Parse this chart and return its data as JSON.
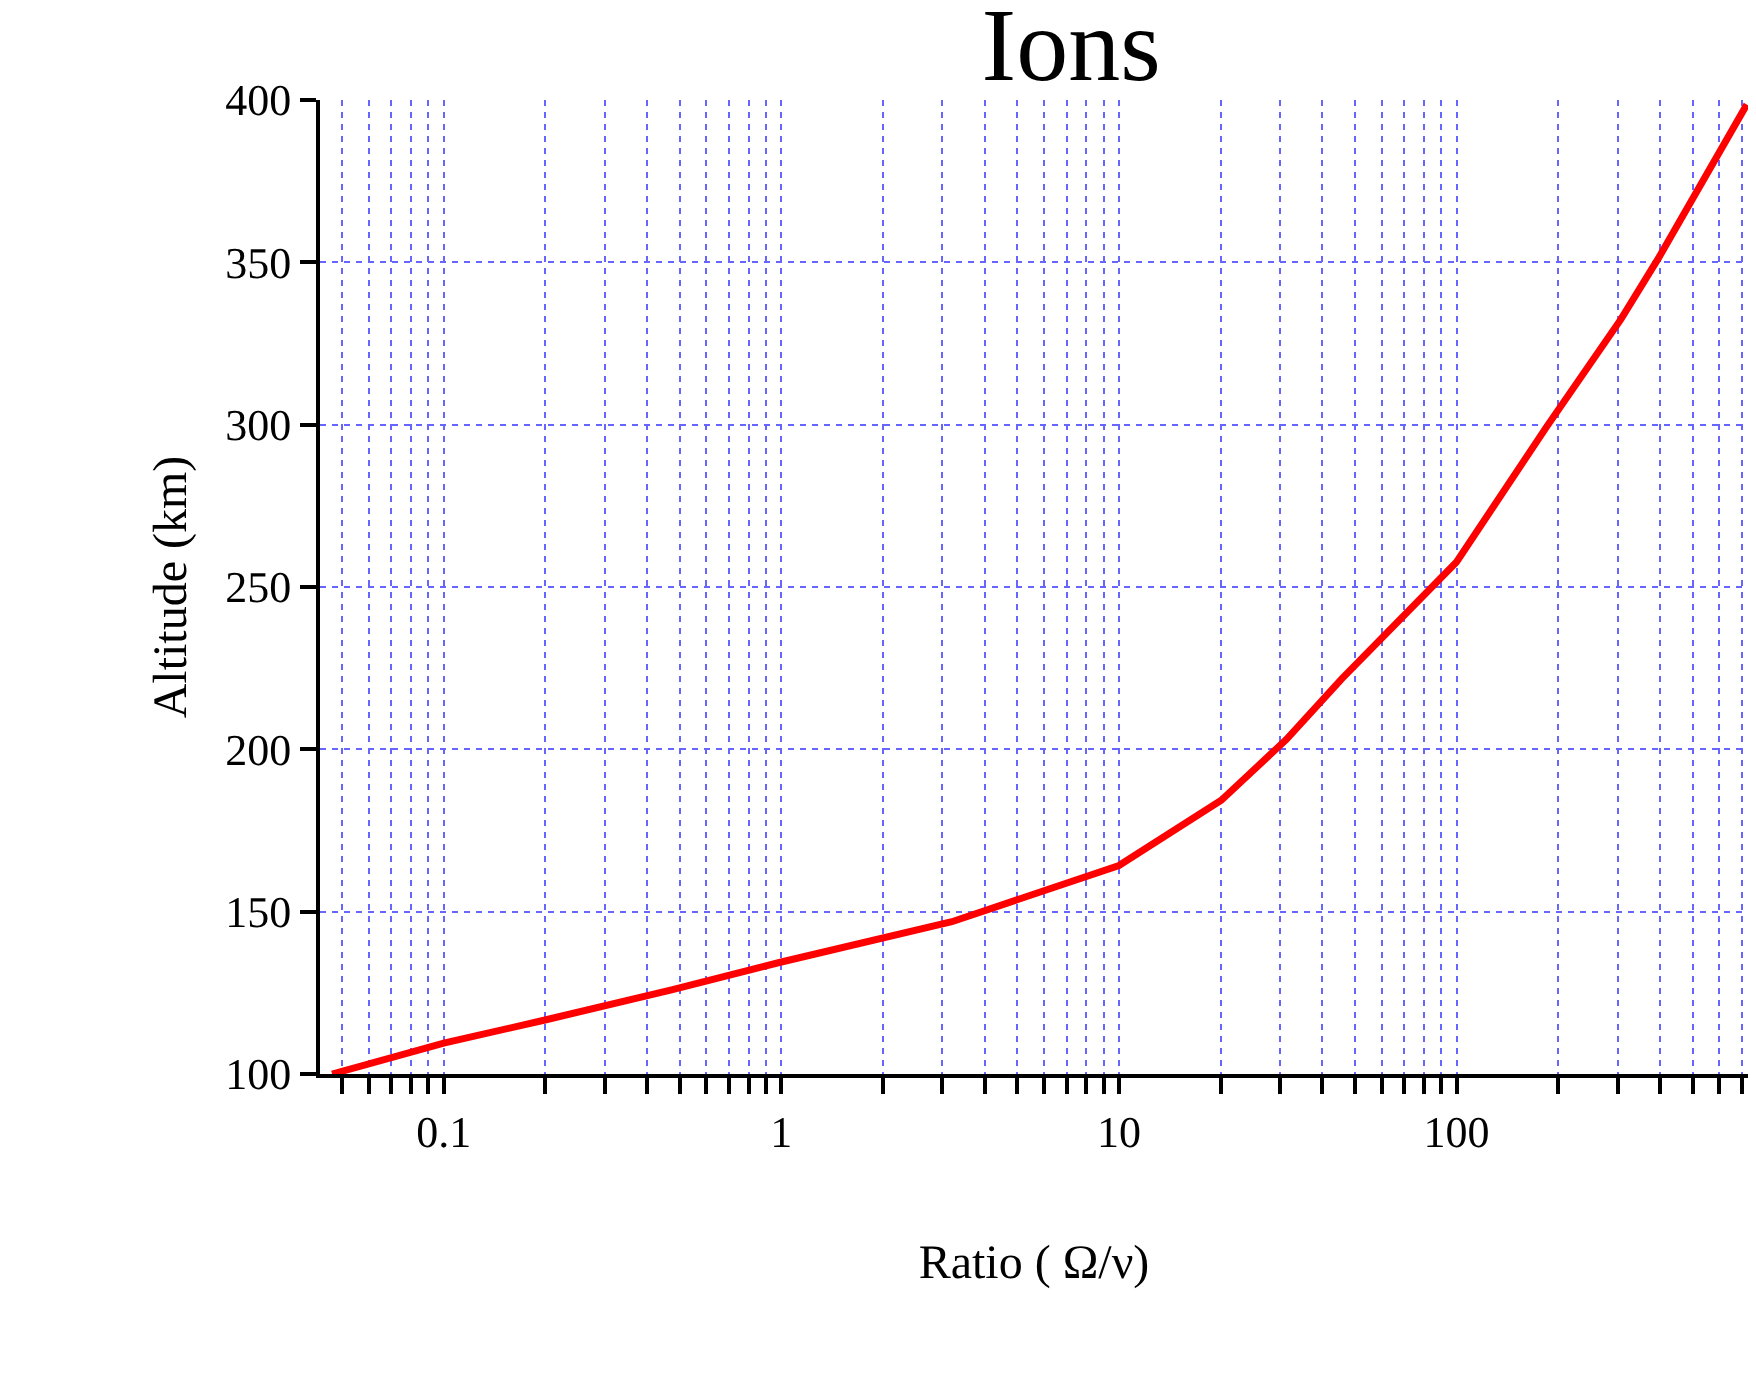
{
  "chart_data": {
    "type": "line",
    "title": "Ions",
    "xlabel": "Ratio ( Ω/ν)",
    "ylabel": "Altitude (km)",
    "log": "x",
    "grid": true,
    "marker": "none",
    "line_style": "solid",
    "xlim": [
      0.043,
      730
    ],
    "ylim": [
      100,
      400
    ],
    "xticks": [
      {
        "value": 0.05,
        "label": null
      },
      {
        "value": 0.06,
        "label": null
      },
      {
        "value": 0.07,
        "label": null
      },
      {
        "value": 0.08,
        "label": null
      },
      {
        "value": 0.09,
        "label": null
      },
      {
        "value": 0.1,
        "label": "0.1"
      },
      {
        "value": 0.2,
        "label": null
      },
      {
        "value": 0.3,
        "label": null
      },
      {
        "value": 0.4,
        "label": null
      },
      {
        "value": 0.5,
        "label": null
      },
      {
        "value": 0.6,
        "label": null
      },
      {
        "value": 0.7,
        "label": null
      },
      {
        "value": 0.8,
        "label": null
      },
      {
        "value": 0.9,
        "label": null
      },
      1,
      {
        "value": 2,
        "label": null
      },
      {
        "value": 3,
        "label": null
      },
      {
        "value": 4,
        "label": null
      },
      {
        "value": 5,
        "label": null
      },
      {
        "value": 6,
        "label": null
      },
      {
        "value": 7,
        "label": null
      },
      {
        "value": 8,
        "label": null
      },
      {
        "value": 9,
        "label": null
      },
      10,
      {
        "value": 20,
        "label": null
      },
      {
        "value": 30,
        "label": null
      },
      {
        "value": 40,
        "label": null
      },
      {
        "value": 50,
        "label": null
      },
      {
        "value": 60,
        "label": null
      },
      {
        "value": 70,
        "label": null
      },
      {
        "value": 80,
        "label": null
      },
      {
        "value": 90,
        "label": null
      },
      100,
      {
        "value": 200,
        "label": null
      },
      {
        "value": 300,
        "label": null
      },
      {
        "value": 400,
        "label": null
      },
      {
        "value": 500,
        "label": null
      },
      {
        "value": 600,
        "label": null
      },
      {
        "value": 700,
        "label": null
      }
    ],
    "yticks": [
      100,
      150,
      200,
      250,
      300,
      350,
      400
    ],
    "series": [
      {
        "color": "#ff0000",
        "x": [
          0.0467,
          0.1,
          0.201,
          0.473,
          1,
          3.2,
          10,
          20.1,
          31.3,
          45.7,
          100,
          185,
          307,
          396,
          724
        ],
        "values": [
          100,
          109.5,
          116.7,
          125.9,
          134.5,
          146.9,
          164.2,
          184.3,
          203,
          221.7,
          257.7,
          299.4,
          332.5,
          351.2,
          398.6
        ]
      }
    ]
  }
}
